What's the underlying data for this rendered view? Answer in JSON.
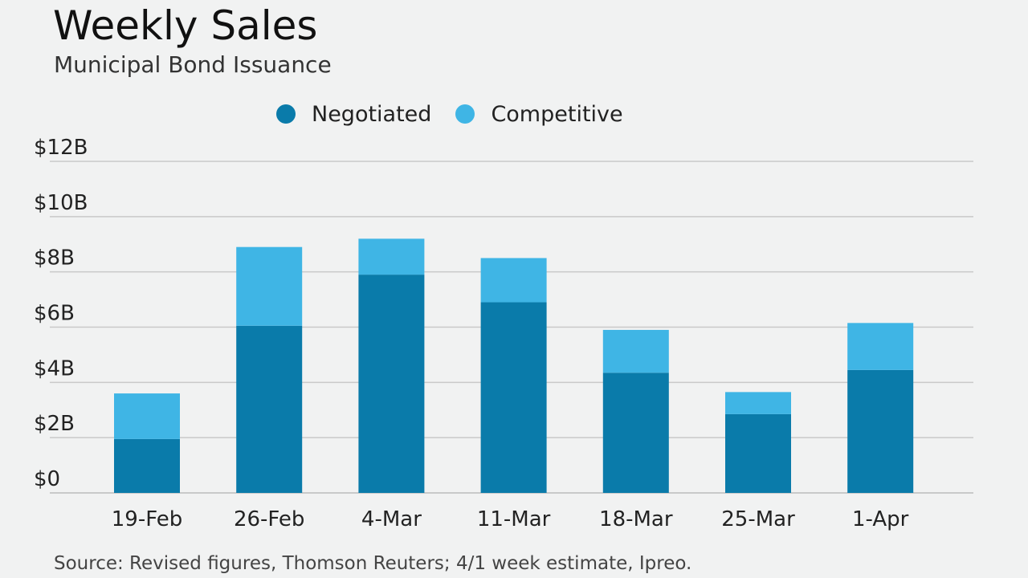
{
  "header": {
    "title": "Weekly Sales",
    "subtitle": "Municipal Bond Issuance"
  },
  "legend": {
    "negotiated": "Negotiated",
    "competitive": "Competitive"
  },
  "colors": {
    "negotiated": "#0a7baa",
    "competitive": "#3fb5e5",
    "grid": "#c9c9c9",
    "background": "#f1f2f2"
  },
  "footer": {
    "source": "Source: Revised figures, Thomson Reuters; 4/1 week estimate, Ipreo."
  },
  "chart_data": {
    "type": "bar",
    "stacked": true,
    "title": "Weekly Sales",
    "subtitle": "Municipal Bond Issuance",
    "categories": [
      "19-Feb",
      "26-Feb",
      "4-Mar",
      "11-Mar",
      "18-Mar",
      "25-Mar",
      "1-Apr"
    ],
    "series": [
      {
        "name": "Negotiated",
        "values": [
          1.95,
          6.05,
          7.9,
          6.9,
          4.35,
          2.85,
          4.45
        ]
      },
      {
        "name": "Competitive",
        "values": [
          1.65,
          2.85,
          1.3,
          1.6,
          1.55,
          0.8,
          1.7
        ]
      }
    ],
    "yticks": [
      "$0",
      "$2B",
      "$4B",
      "$6B",
      "$8B",
      "$10B",
      "$12B"
    ],
    "ylim": [
      0,
      12
    ],
    "grid": true,
    "legend_position": "top"
  }
}
